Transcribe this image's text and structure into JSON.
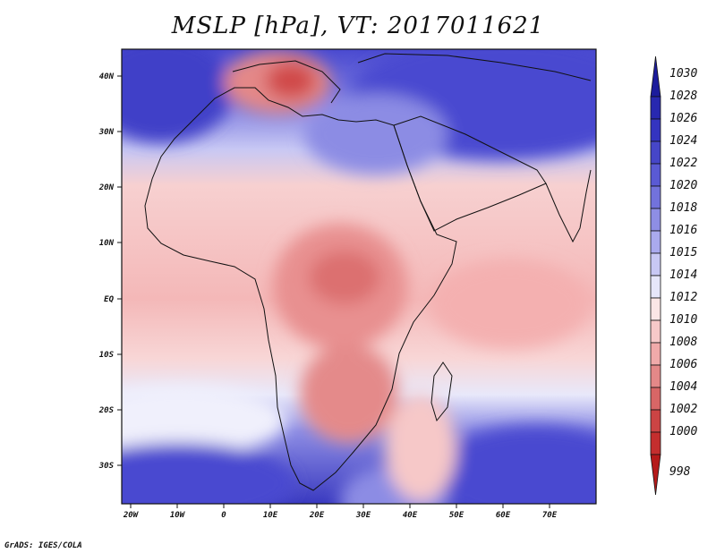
{
  "title": "MSLP [hPa], VT: 2017011621",
  "credit": "GrADS: IGES/COLA",
  "map": {
    "variable": "Mean sea level pressure",
    "units": "hPa",
    "valid_time": "2017011621",
    "lon_labels": [
      "20W",
      "10W",
      "0",
      "10E",
      "20E",
      "30E",
      "40E",
      "50E",
      "60E",
      "70E"
    ],
    "lat_labels": [
      "40N",
      "30N",
      "20N",
      "10N",
      "EQ",
      "10S",
      "20S",
      "30S"
    ]
  },
  "colorbar": {
    "levels": [
      "1030",
      "1028",
      "1026",
      "1024",
      "1022",
      "1020",
      "1018",
      "1016",
      "1015",
      "1014",
      "1012",
      "1010",
      "1008",
      "1006",
      "1004",
      "1002",
      "1000",
      "998"
    ],
    "colors": [
      "#1c1c9c",
      "#2828b0",
      "#3434c0",
      "#4646c8",
      "#5a5ad4",
      "#7272dc",
      "#8e8ee4",
      "#aaaaee",
      "#c8c8f4",
      "#e6e6fa",
      "#fbe6e6",
      "#f7c9c9",
      "#f0aaaa",
      "#e48888",
      "#d86666",
      "#cc4444",
      "#c42e2e",
      "#b51a1a"
    ]
  }
}
